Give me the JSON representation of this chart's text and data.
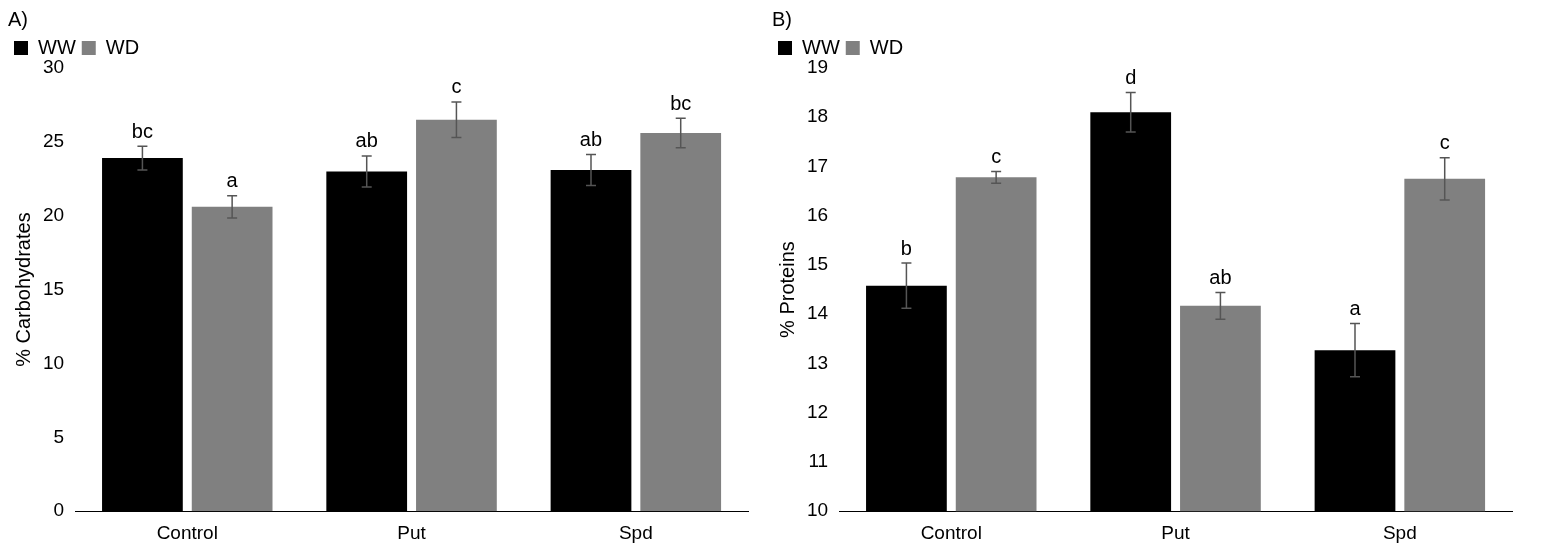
{
  "chart_data": [
    {
      "type": "bar",
      "title": "A)",
      "ylabel": "% Carbohydrates",
      "categories": [
        "Control",
        "Put",
        "Spd"
      ],
      "ylim": [
        0,
        30
      ],
      "yticks": [
        0,
        5,
        10,
        15,
        20,
        25,
        30
      ],
      "grid": false,
      "legend": "top left",
      "series": [
        {
          "name": "WW",
          "color": "#000000",
          "values": [
            23.9,
            23.0,
            23.1
          ],
          "errors": [
            0.8,
            1.05,
            1.05
          ],
          "value_labels": [
            "bc",
            "ab",
            "ab"
          ]
        },
        {
          "name": "WD",
          "color": "#808080",
          "values": [
            20.6,
            26.5,
            25.6
          ],
          "errors": [
            0.75,
            1.2,
            1.0
          ],
          "value_labels": [
            "a",
            "c",
            "bc"
          ]
        }
      ]
    },
    {
      "type": "bar",
      "title": "B)",
      "ylabel": "% Proteins",
      "categories": [
        "Control",
        "Put",
        "Spd"
      ],
      "ylim": [
        10,
        19
      ],
      "yticks": [
        10,
        11,
        12,
        13,
        14,
        15,
        16,
        17,
        18,
        19
      ],
      "grid": false,
      "legend": "top left",
      "series": [
        {
          "name": "WW",
          "color": "#000000",
          "values": [
            14.58,
            18.1,
            13.27
          ],
          "errors": [
            0.46,
            0.4,
            0.54
          ],
          "value_labels": [
            "b",
            "d",
            "a"
          ]
        },
        {
          "name": "WD",
          "color": "#808080",
          "values": [
            16.78,
            14.17,
            16.75
          ],
          "errors": [
            0.12,
            0.27,
            0.43
          ],
          "value_labels": [
            "c",
            "ab",
            "c"
          ]
        }
      ]
    }
  ]
}
